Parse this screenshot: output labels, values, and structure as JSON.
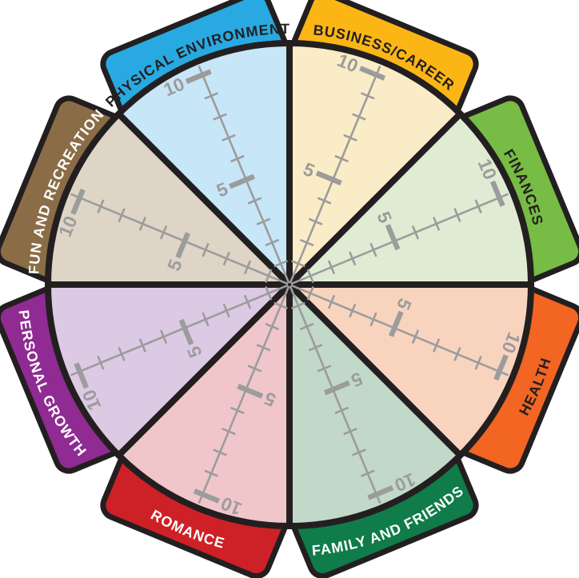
{
  "diagram": {
    "type": "wheel-of-life",
    "background_color": "#FFFFFF",
    "outline_color": "#231F20",
    "scale": {
      "min": 0,
      "max": 10,
      "labeled_ticks": [
        5,
        10
      ],
      "minor_ticks": [
        1,
        2,
        3,
        4,
        6,
        7,
        8,
        9
      ],
      "tick_label_5": "5",
      "tick_label_10": "10",
      "axis_color": "#9C9C9C"
    },
    "segments": [
      {
        "id": "business-career",
        "label": "BUSINESS/CAREER",
        "tab_color": "#FBB615",
        "wedge_color": "#FAECC6",
        "label_color": "#231F20"
      },
      {
        "id": "finances",
        "label": "FINANCES",
        "tab_color": "#77BC44",
        "wedge_color": "#DFECD3",
        "label_color": "#231F20"
      },
      {
        "id": "health",
        "label": "HEALTH",
        "tab_color": "#F26522",
        "wedge_color": "#F8D4BF",
        "label_color": "#231F20"
      },
      {
        "id": "family-and-friends",
        "label": "FAMILY AND FRIENDS",
        "tab_color": "#0F7C4A",
        "wedge_color": "#C2D8C8",
        "label_color": "#FFFFFF"
      },
      {
        "id": "romance",
        "label": "ROMANCE",
        "tab_color": "#CE2127",
        "wedge_color": "#F0C6CA",
        "label_color": "#FFFFFF"
      },
      {
        "id": "personal-growth",
        "label": "PERSONAL GROWTH",
        "tab_color": "#8F2B92",
        "wedge_color": "#DCC9E3",
        "label_color": "#FFFFFF"
      },
      {
        "id": "fun-and-recreation",
        "label": "FUN AND RECREATION",
        "tab_color": "#8A6D46",
        "wedge_color": "#DED5C6",
        "label_color": "#FFFFFF"
      },
      {
        "id": "physical-environment",
        "label": "PHYSICAL ENVIRONMENT",
        "tab_color": "#29A9E1",
        "wedge_color": "#C7E6F8",
        "label_color": "#231F20"
      }
    ]
  }
}
